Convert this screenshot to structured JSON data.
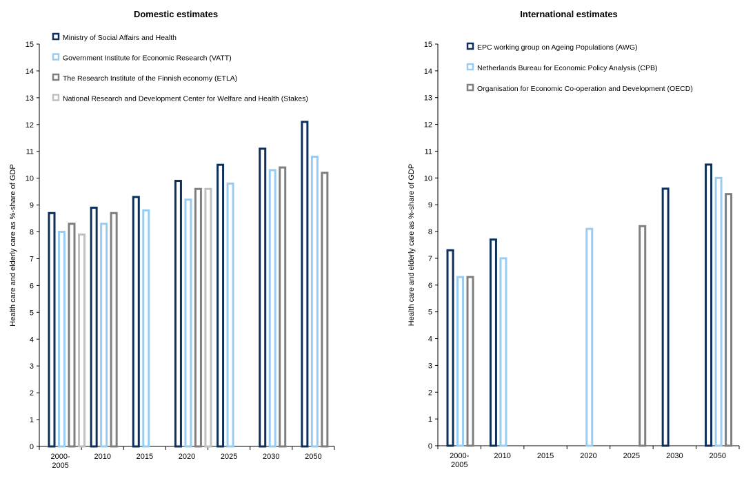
{
  "chart_data": [
    {
      "type": "bar",
      "title": "Domestic estimates",
      "ylabel": "Health care and elderly care as %-share of GDP",
      "xlabel": "",
      "ylim": [
        0,
        15
      ],
      "yticks": [
        "0",
        "1",
        "2",
        "3",
        "4",
        "5",
        "6",
        "7",
        "8",
        "9",
        "10",
        "11",
        "12",
        "13",
        "14",
        "15"
      ],
      "categories": [
        [
          "2000-",
          "2005"
        ],
        [
          "2010"
        ],
        [
          "2015"
        ],
        [
          "2020"
        ],
        [
          "2025"
        ],
        [
          "2030"
        ],
        [
          "2050"
        ]
      ],
      "legend_position": "top-left",
      "grid": false,
      "series": [
        {
          "name": "Ministry of Social Affairs and Health",
          "color": "#0d2f5a",
          "values": [
            8.7,
            8.9,
            9.3,
            9.9,
            10.5,
            11.1,
            12.1
          ]
        },
        {
          "name": "Government Institute for Economic Research (VATT)",
          "color": "#99ccf2",
          "values": [
            8.0,
            8.3,
            8.8,
            9.2,
            9.8,
            10.3,
            10.8
          ]
        },
        {
          "name": "The Research Institute of the Finnish economy (ETLA)",
          "color": "#7f7f7f",
          "values": [
            8.3,
            8.7,
            null,
            9.6,
            null,
            10.4,
            10.2
          ]
        },
        {
          "name": "National Research and Development Center for Welfare and Health (Stakes)",
          "color": "#c0c0c0",
          "values": [
            7.9,
            null,
            null,
            9.6,
            null,
            null,
            null
          ]
        }
      ]
    },
    {
      "type": "bar",
      "title": "International estimates",
      "ylabel": "Health care and elderly care as %-share of GDP",
      "xlabel": "",
      "ylim": [
        0,
        15
      ],
      "yticks": [
        "0",
        "1",
        "2",
        "3",
        "4",
        "5",
        "6",
        "7",
        "8",
        "9",
        "10",
        "11",
        "12",
        "13",
        "14",
        "15"
      ],
      "categories": [
        [
          "2000-",
          "2005"
        ],
        [
          "2010"
        ],
        [
          "2015"
        ],
        [
          "2020"
        ],
        [
          "2025"
        ],
        [
          "2030"
        ],
        [
          "2050"
        ]
      ],
      "legend_position": "top-left",
      "grid": false,
      "series": [
        {
          "name": "EPC working group on Ageing Populations (AWG)",
          "color": "#0d2f5a",
          "values": [
            7.3,
            7.7,
            null,
            null,
            null,
            9.6,
            10.5
          ]
        },
        {
          "name": "Netherlands Bureau for Economic Policy Analysis (CPB)",
          "color": "#99ccf2",
          "values": [
            6.3,
            7.0,
            null,
            8.1,
            null,
            null,
            10.0
          ]
        },
        {
          "name": "Organisation for Economic Co-operation and Development (OECD)",
          "color": "#7f7f7f",
          "values": [
            6.3,
            null,
            null,
            null,
            8.2,
            null,
            9.4
          ]
        }
      ]
    }
  ]
}
